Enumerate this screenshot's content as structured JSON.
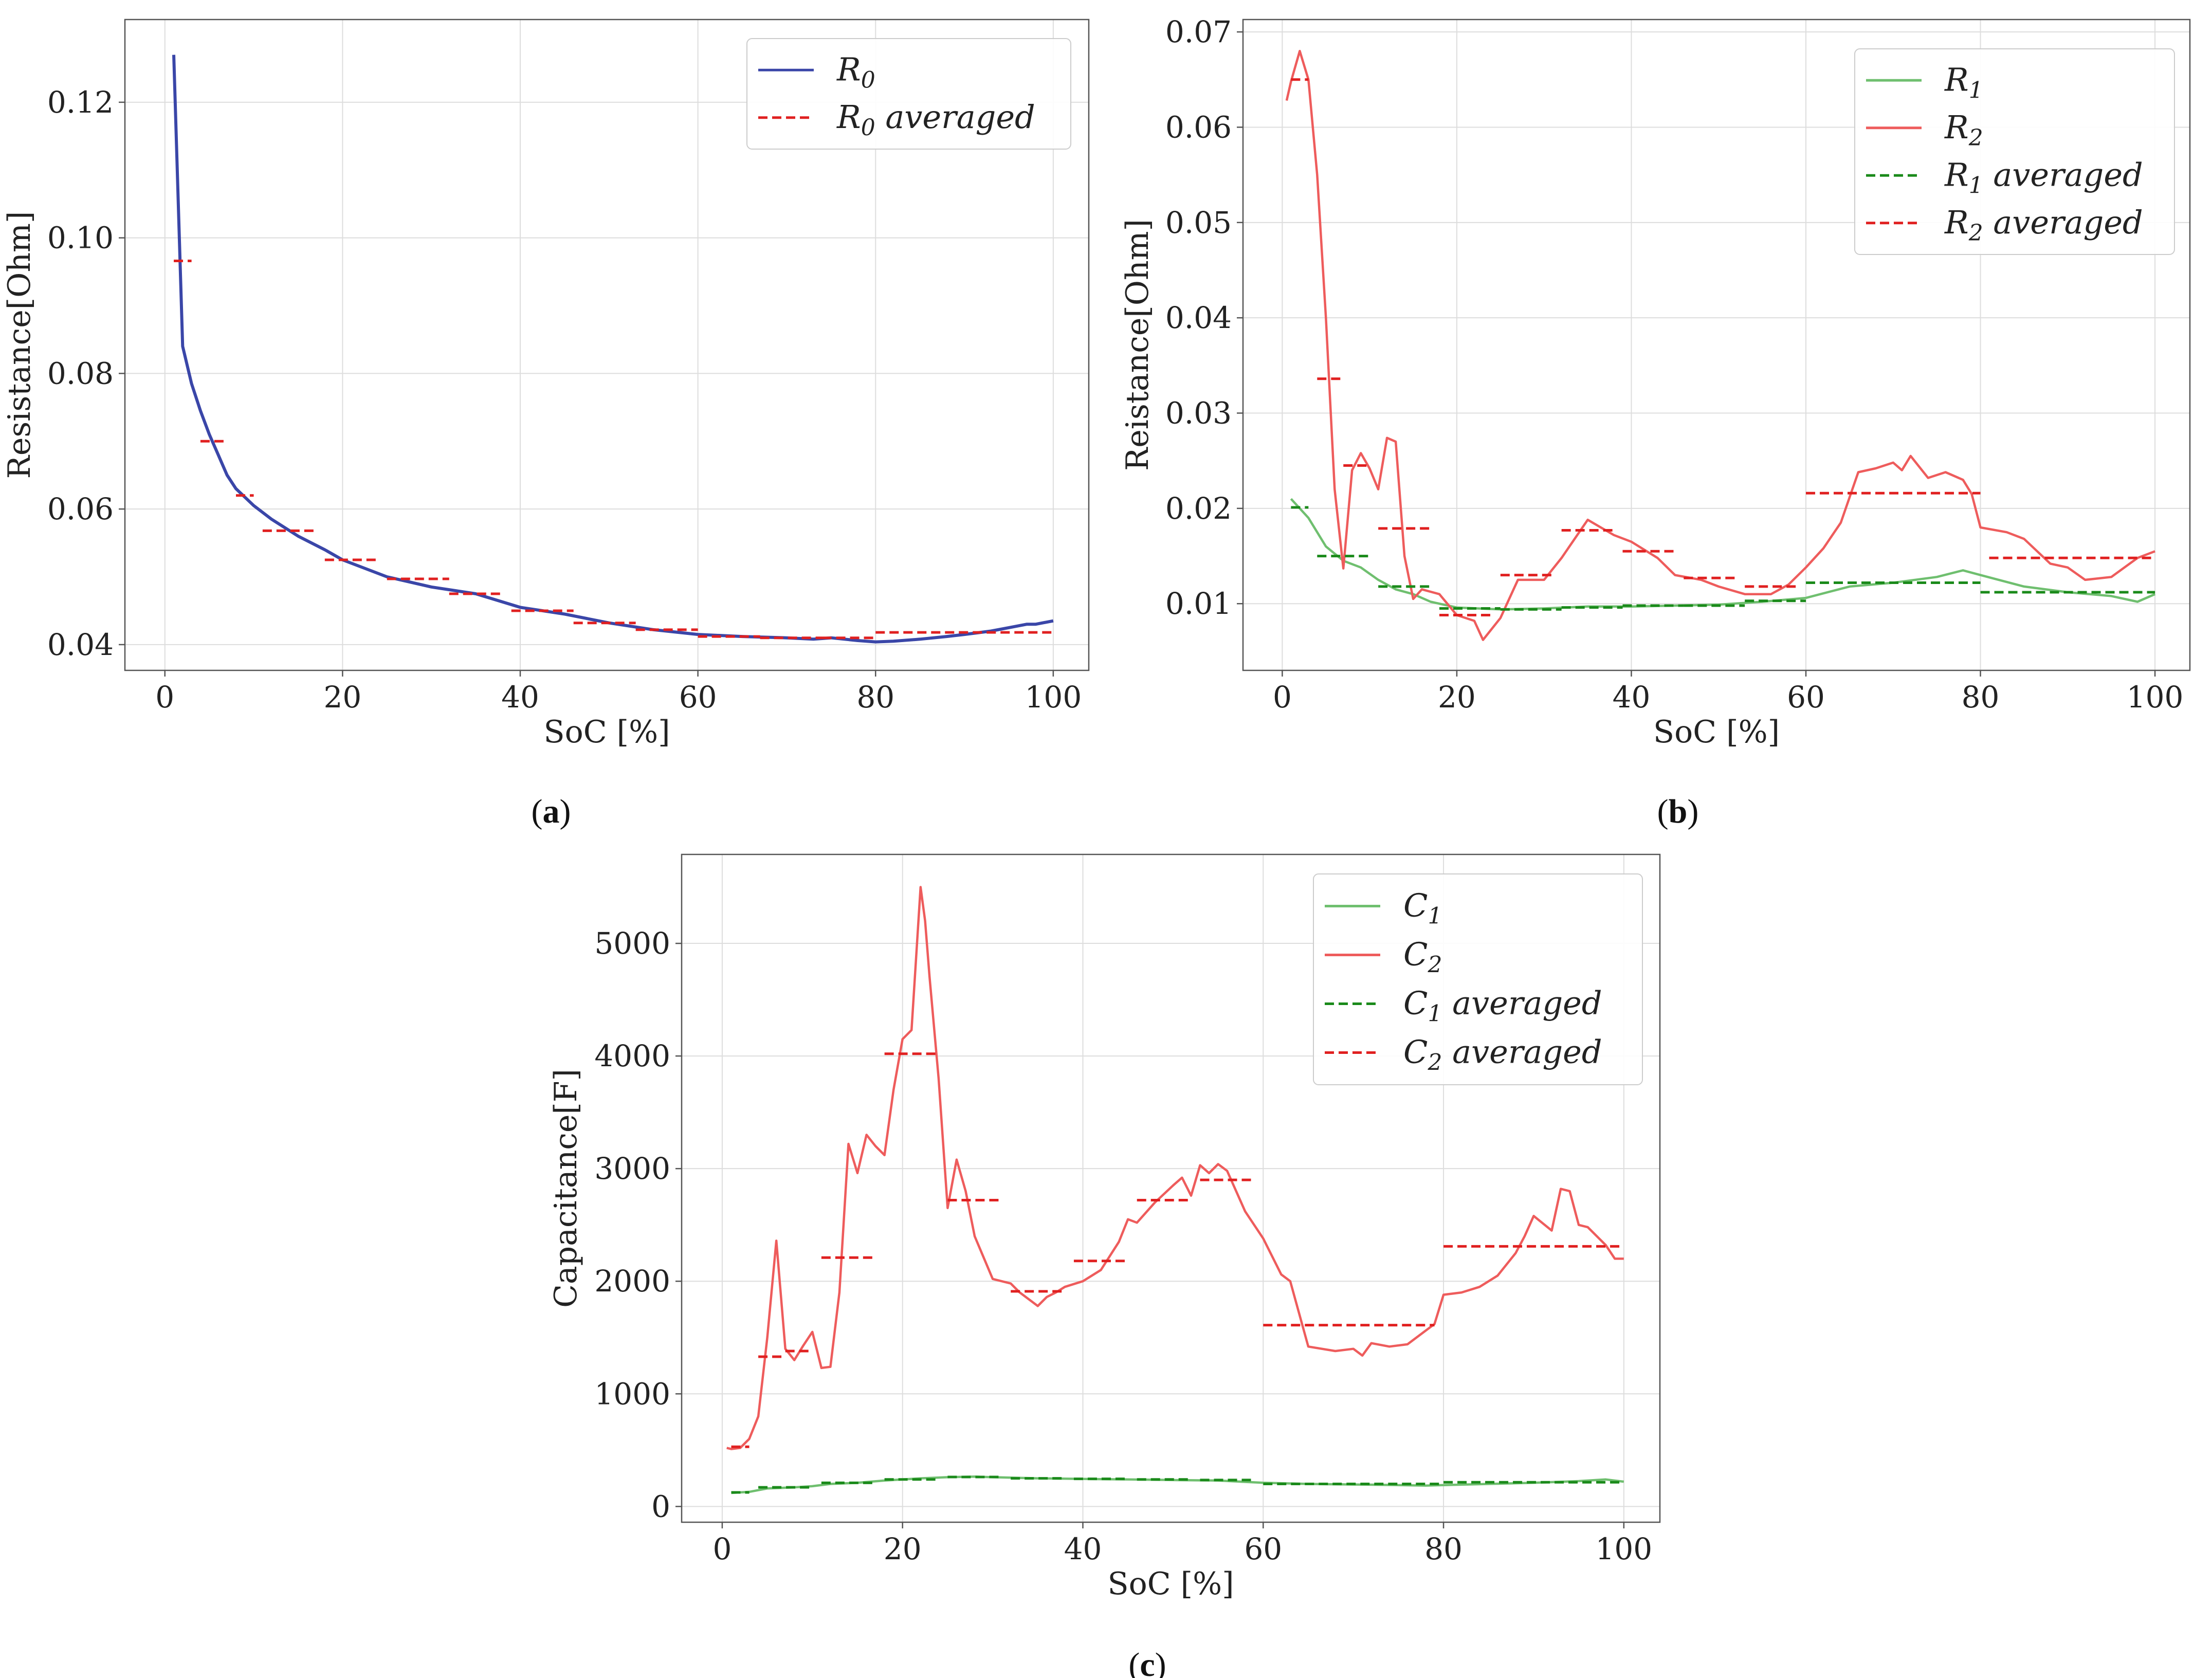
{
  "colors": {
    "blue": "#3a46a8",
    "red": "#ee5c5c",
    "red_dashed": "#e02020",
    "green": "#6fbf6f",
    "green_dashed": "#1a8a1a",
    "grid": "#dddddd",
    "frame": "#555555"
  },
  "chart_data": [
    {
      "id": "a",
      "type": "line",
      "caption": "a",
      "xlabel": "SoC [%]",
      "ylabel": "Resistance[Ohm]",
      "xlim": [
        -4.5,
        104
      ],
      "ylim": [
        0.0362,
        0.1322
      ],
      "xticks": [
        0,
        20,
        40,
        60,
        80,
        100
      ],
      "yticks": [
        0.04,
        0.06,
        0.08,
        0.1,
        0.12
      ],
      "ytick_labels": [
        "0.04",
        "0.06",
        "0.08",
        "0.10",
        "0.12"
      ],
      "grid": true,
      "legend": "top-right",
      "series": [
        {
          "name": "R",
          "name_sub": "0",
          "style": "solid",
          "color_key": "blue",
          "x": [
            1,
            2,
            3,
            4,
            5,
            6,
            7,
            8,
            10,
            12,
            15,
            18,
            20,
            25,
            30,
            35,
            40,
            45,
            50,
            55,
            60,
            65,
            70,
            73,
            75,
            78,
            80,
            82,
            85,
            88,
            90,
            93,
            95,
            97,
            98,
            100
          ],
          "y": [
            0.127,
            0.084,
            0.0785,
            0.0745,
            0.071,
            0.068,
            0.065,
            0.063,
            0.0605,
            0.0585,
            0.056,
            0.054,
            0.0525,
            0.05,
            0.0485,
            0.0475,
            0.0455,
            0.0445,
            0.0432,
            0.0422,
            0.0415,
            0.0412,
            0.041,
            0.0408,
            0.041,
            0.0406,
            0.0404,
            0.0405,
            0.0408,
            0.0412,
            0.0415,
            0.042,
            0.0425,
            0.043,
            0.043,
            0.0435
          ]
        },
        {
          "name": "R",
          "name_sub": "0",
          "name_suffix": " averaged",
          "style": "dashed",
          "color_key": "red_dashed",
          "segments": [
            {
              "x": [
                1,
                3
              ],
              "y": 0.0966
            },
            {
              "x": [
                4,
                7
              ],
              "y": 0.07
            },
            {
              "x": [
                8,
                10
              ],
              "y": 0.062
            },
            {
              "x": [
                11,
                17
              ],
              "y": 0.0568
            },
            {
              "x": [
                18,
                24
              ],
              "y": 0.0525
            },
            {
              "x": [
                25,
                32
              ],
              "y": 0.0497
            },
            {
              "x": [
                32,
                38
              ],
              "y": 0.0475
            },
            {
              "x": [
                39,
                46
              ],
              "y": 0.045
            },
            {
              "x": [
                46,
                53
              ],
              "y": 0.0432
            },
            {
              "x": [
                53,
                60
              ],
              "y": 0.0422
            },
            {
              "x": [
                60,
                67
              ],
              "y": 0.0412
            },
            {
              "x": [
                67,
                74
              ],
              "y": 0.041
            },
            {
              "x": [
                74,
                80
              ],
              "y": 0.041
            },
            {
              "x": [
                80,
                100
              ],
              "y": 0.0418
            }
          ]
        }
      ]
    },
    {
      "id": "b",
      "type": "line",
      "caption": "b",
      "xlabel": "SoC [%]",
      "ylabel": "Reistance[Ohm]",
      "xlim": [
        -4.5,
        104
      ],
      "ylim": [
        0.003,
        0.0713
      ],
      "xticks": [
        0,
        20,
        40,
        60,
        80,
        100
      ],
      "yticks": [
        0.01,
        0.02,
        0.03,
        0.04,
        0.05,
        0.06,
        0.07
      ],
      "ytick_labels": [
        "0.01",
        "0.02",
        "0.03",
        "0.04",
        "0.05",
        "0.06",
        "0.07"
      ],
      "grid": true,
      "legend": "top-right",
      "series": [
        {
          "name": "R",
          "name_sub": "1",
          "style": "solid",
          "color_key": "green",
          "x": [
            1,
            3,
            5,
            7,
            9,
            11,
            13,
            15,
            17,
            20,
            25,
            30,
            35,
            40,
            45,
            50,
            55,
            60,
            65,
            70,
            75,
            78,
            80,
            85,
            90,
            95,
            98,
            100
          ],
          "y": [
            0.021,
            0.019,
            0.016,
            0.0145,
            0.0138,
            0.0125,
            0.0115,
            0.011,
            0.0102,
            0.0096,
            0.0094,
            0.0095,
            0.0097,
            0.0097,
            0.0098,
            0.0099,
            0.0102,
            0.0106,
            0.0118,
            0.0122,
            0.0128,
            0.0135,
            0.013,
            0.0118,
            0.0112,
            0.0108,
            0.0102,
            0.011
          ]
        },
        {
          "name": "R",
          "name_sub": "2",
          "style": "solid",
          "color_key": "red",
          "x": [
            0.5,
            1,
            2,
            3,
            4,
            5,
            6,
            7,
            8,
            9,
            10,
            11,
            12,
            13,
            14,
            15,
            16,
            18,
            20,
            22,
            23,
            25,
            27,
            30,
            32,
            35,
            38,
            40,
            43,
            45,
            48,
            50,
            53,
            56,
            58,
            60,
            62,
            64,
            66,
            68,
            70,
            71,
            72,
            74,
            76,
            78,
            79,
            80,
            83,
            85,
            88,
            90,
            92,
            95,
            98,
            100
          ],
          "y": [
            0.0628,
            0.0648,
            0.068,
            0.065,
            0.055,
            0.04,
            0.022,
            0.0137,
            0.024,
            0.0258,
            0.0242,
            0.022,
            0.0274,
            0.027,
            0.015,
            0.0105,
            0.0115,
            0.011,
            0.0088,
            0.0082,
            0.0062,
            0.0085,
            0.0125,
            0.0125,
            0.0148,
            0.0188,
            0.0172,
            0.0165,
            0.0148,
            0.013,
            0.0125,
            0.0118,
            0.011,
            0.011,
            0.012,
            0.0138,
            0.0158,
            0.0185,
            0.0238,
            0.0242,
            0.0248,
            0.024,
            0.0255,
            0.0232,
            0.0238,
            0.023,
            0.0215,
            0.018,
            0.0175,
            0.0168,
            0.0142,
            0.0138,
            0.0125,
            0.0128,
            0.0148,
            0.0155
          ]
        },
        {
          "name": "R",
          "name_sub": "1",
          "name_suffix": " averaged",
          "style": "dashed",
          "color_key": "green_dashed",
          "segments": [
            {
              "x": [
                1,
                3
              ],
              "y": 0.0201
            },
            {
              "x": [
                4,
                10
              ],
              "y": 0.015
            },
            {
              "x": [
                11,
                17
              ],
              "y": 0.0118
            },
            {
              "x": [
                18,
                25
              ],
              "y": 0.0095
            },
            {
              "x": [
                25,
                32
              ],
              "y": 0.0094
            },
            {
              "x": [
                32,
                39
              ],
              "y": 0.0096
            },
            {
              "x": [
                39,
                46
              ],
              "y": 0.0098
            },
            {
              "x": [
                46,
                53
              ],
              "y": 0.0098
            },
            {
              "x": [
                53,
                60
              ],
              "y": 0.0103
            },
            {
              "x": [
                60,
                80
              ],
              "y": 0.0122
            },
            {
              "x": [
                80,
                100
              ],
              "y": 0.0112
            }
          ]
        },
        {
          "name": "R",
          "name_sub": "2",
          "name_suffix": " averaged",
          "style": "dashed",
          "color_key": "red_dashed",
          "segments": [
            {
              "x": [
                1,
                3
              ],
              "y": 0.065
            },
            {
              "x": [
                4,
                7
              ],
              "y": 0.0336
            },
            {
              "x": [
                7,
                10
              ],
              "y": 0.0245
            },
            {
              "x": [
                11,
                17
              ],
              "y": 0.0179
            },
            {
              "x": [
                18,
                24
              ],
              "y": 0.0088
            },
            {
              "x": [
                25,
                31
              ],
              "y": 0.013
            },
            {
              "x": [
                32,
                38
              ],
              "y": 0.0177
            },
            {
              "x": [
                39,
                45
              ],
              "y": 0.0155
            },
            {
              "x": [
                46,
                52
              ],
              "y": 0.0127
            },
            {
              "x": [
                53,
                59
              ],
              "y": 0.0118
            },
            {
              "x": [
                60,
                80
              ],
              "y": 0.0216
            },
            {
              "x": [
                81,
                100
              ],
              "y": 0.0148
            }
          ]
        }
      ]
    },
    {
      "id": "c",
      "type": "line",
      "caption": "c",
      "xlabel": "SoC [%]",
      "ylabel": "Capacitance[F]",
      "xlim": [
        -4.5,
        104
      ],
      "ylim": [
        -140,
        5790
      ],
      "xticks": [
        0,
        20,
        40,
        60,
        80,
        100
      ],
      "yticks": [
        0,
        1000,
        2000,
        3000,
        4000,
        5000
      ],
      "ytick_labels": [
        "0",
        "1000",
        "2000",
        "3000",
        "4000",
        "5000"
      ],
      "grid": true,
      "legend": "top-right",
      "series": [
        {
          "name": "C",
          "name_sub": "1",
          "style": "solid",
          "color_key": "green",
          "x": [
            1,
            3,
            5,
            8,
            10,
            12,
            15,
            18,
            20,
            22,
            25,
            28,
            30,
            35,
            40,
            45,
            50,
            55,
            60,
            65,
            70,
            75,
            78,
            80,
            85,
            90,
            95,
            98,
            100
          ],
          "y": [
            120,
            130,
            160,
            170,
            180,
            200,
            210,
            230,
            240,
            250,
            260,
            265,
            260,
            250,
            245,
            240,
            235,
            230,
            210,
            200,
            195,
            190,
            185,
            190,
            200,
            210,
            225,
            240,
            220
          ]
        },
        {
          "name": "C",
          "name_sub": "2",
          "style": "solid",
          "color_key": "red",
          "x": [
            0.5,
            1,
            2,
            3,
            4,
            5,
            6,
            7,
            8,
            9,
            10,
            11,
            12,
            13,
            14,
            15,
            16,
            17,
            18,
            19,
            20,
            21,
            22,
            22.5,
            23,
            24,
            25,
            26,
            27,
            28,
            30,
            32,
            33,
            35,
            36,
            37,
            38,
            40,
            42,
            44,
            45,
            46,
            48,
            50,
            51,
            52,
            53,
            54,
            55,
            56,
            58,
            60,
            62,
            63,
            65,
            68,
            70,
            71,
            72,
            74,
            76,
            78,
            79,
            80,
            82,
            84,
            86,
            88,
            89,
            90,
            92,
            93,
            94,
            95,
            96,
            98,
            99,
            100
          ],
          "y": [
            520,
            510,
            520,
            600,
            800,
            1500,
            2360,
            1400,
            1300,
            1430,
            1550,
            1230,
            1240,
            1900,
            3220,
            2960,
            3300,
            3200,
            3120,
            3700,
            4150,
            4230,
            5500,
            5200,
            4700,
            3800,
            2650,
            3080,
            2800,
            2400,
            2020,
            1980,
            1900,
            1780,
            1860,
            1900,
            1950,
            2000,
            2100,
            2350,
            2550,
            2520,
            2700,
            2850,
            2920,
            2760,
            3030,
            2960,
            3040,
            2980,
            2620,
            2380,
            2060,
            2000,
            1420,
            1380,
            1400,
            1340,
            1450,
            1420,
            1440,
            1560,
            1620,
            1880,
            1900,
            1950,
            2050,
            2250,
            2400,
            2580,
            2450,
            2820,
            2800,
            2500,
            2480,
            2320,
            2200,
            2200
          ]
        },
        {
          "name": "C",
          "name_sub": "1",
          "name_suffix": " averaged",
          "style": "dashed",
          "color_key": "green_dashed",
          "segments": [
            {
              "x": [
                1,
                3
              ],
              "y": 125
            },
            {
              "x": [
                4,
                10
              ],
              "y": 170
            },
            {
              "x": [
                11,
                17
              ],
              "y": 210
            },
            {
              "x": [
                18,
                24
              ],
              "y": 240
            },
            {
              "x": [
                25,
                31
              ],
              "y": 262
            },
            {
              "x": [
                32,
                38
              ],
              "y": 250
            },
            {
              "x": [
                39,
                45
              ],
              "y": 245
            },
            {
              "x": [
                46,
                52
              ],
              "y": 240
            },
            {
              "x": [
                53,
                59
              ],
              "y": 235
            },
            {
              "x": [
                60,
                80
              ],
              "y": 200
            },
            {
              "x": [
                80,
                100
              ],
              "y": 215
            }
          ]
        },
        {
          "name": "C",
          "name_sub": "2",
          "name_suffix": " averaged",
          "style": "dashed",
          "color_key": "red_dashed",
          "segments": [
            {
              "x": [
                1,
                3
              ],
              "y": 530
            },
            {
              "x": [
                4,
                7
              ],
              "y": 1330
            },
            {
              "x": [
                7,
                10
              ],
              "y": 1380
            },
            {
              "x": [
                11,
                17
              ],
              "y": 2210
            },
            {
              "x": [
                18,
                24
              ],
              "y": 4020
            },
            {
              "x": [
                25,
                31
              ],
              "y": 2720
            },
            {
              "x": [
                32,
                38
              ],
              "y": 1910
            },
            {
              "x": [
                39,
                45
              ],
              "y": 2180
            },
            {
              "x": [
                46,
                52
              ],
              "y": 2720
            },
            {
              "x": [
                53,
                59
              ],
              "y": 2900
            },
            {
              "x": [
                60,
                79
              ],
              "y": 1610
            },
            {
              "x": [
                80,
                100
              ],
              "y": 2310
            }
          ]
        }
      ]
    }
  ]
}
